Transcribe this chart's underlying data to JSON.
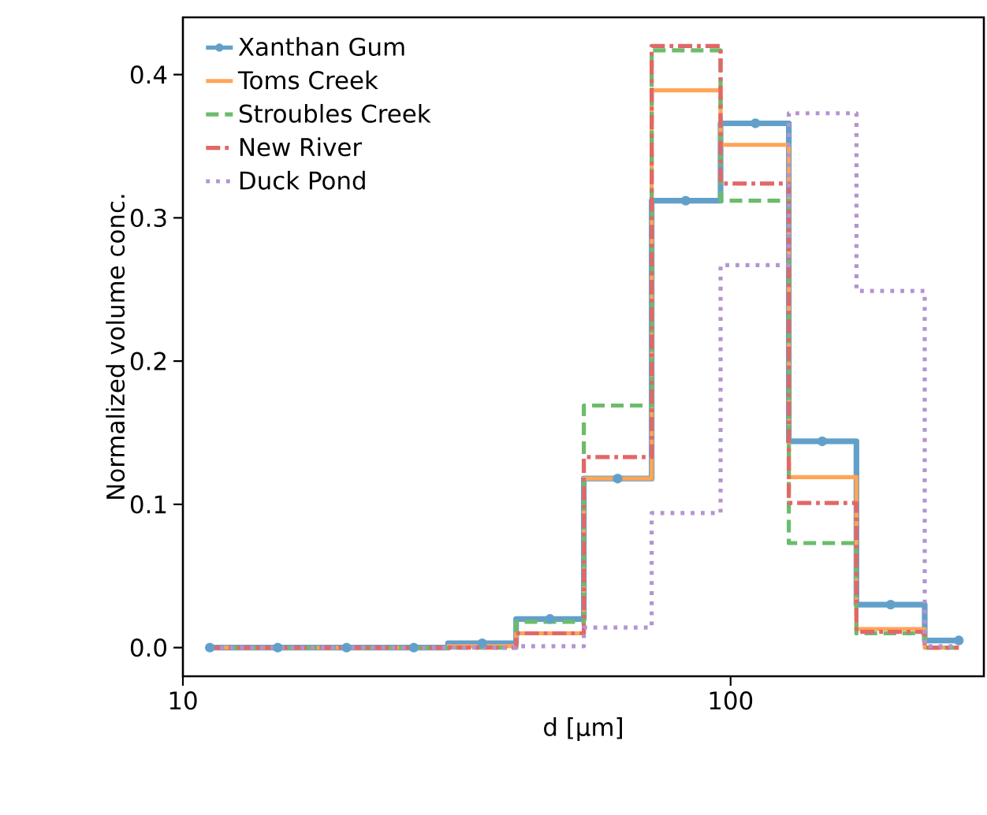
{
  "chart_data": {
    "type": "step",
    "xlabel": "d [µm]",
    "ylabel": "Normalized volume conc.",
    "x": [
      11.2,
      14.9,
      19.9,
      26.4,
      35.2,
      46.8,
      62.2,
      82.8,
      111,
      147,
      196,
      261
    ],
    "log": "x",
    "xlim": [
      10,
      290
    ],
    "ylim": [
      -0.02,
      0.44
    ],
    "xticks": [
      10,
      100
    ],
    "yticks": [
      {
        "value": 0,
        "label": "0.0"
      },
      0.1,
      0.2,
      0.3,
      0.4
    ],
    "legend": "top left",
    "grid": false,
    "series": [
      {
        "name": "Xanthan Gum",
        "color": "#62a0ca",
        "marker": "circle",
        "line_style": "solid",
        "values": [
          0,
          0,
          0,
          0,
          0.003,
          0.02,
          0.118,
          0.312,
          0.366,
          0.144,
          0.03,
          0.005
        ]
      },
      {
        "name": "Toms Creek",
        "color": "#ffa556",
        "marker": "none",
        "line_style": "solid",
        "values": [
          0,
          0,
          0,
          0,
          0.001,
          0.01,
          0.118,
          0.389,
          0.351,
          0.119,
          0.013,
          0
        ]
      },
      {
        "name": "Stroubles Creek",
        "color": "#6bbc6b",
        "marker": "none",
        "line_style": "dashed",
        "values": [
          0,
          0,
          0,
          0,
          0,
          0.018,
          0.169,
          0.417,
          0.312,
          0.073,
          0.01,
          0
        ]
      },
      {
        "name": "New River",
        "color": "#e26768",
        "marker": "none",
        "line_style": "dashdot",
        "values": [
          0,
          0,
          0,
          0,
          0,
          0.01,
          0.133,
          0.42,
          0.324,
          0.101,
          0.011,
          0
        ]
      },
      {
        "name": "Duck Pond",
        "color": "#b494d0",
        "marker": "none",
        "line_style": "dotted",
        "values": [
          0,
          0,
          0,
          0,
          0,
          0.001,
          0.014,
          0.094,
          0.267,
          0.373,
          0.249,
          0.001
        ]
      }
    ]
  }
}
